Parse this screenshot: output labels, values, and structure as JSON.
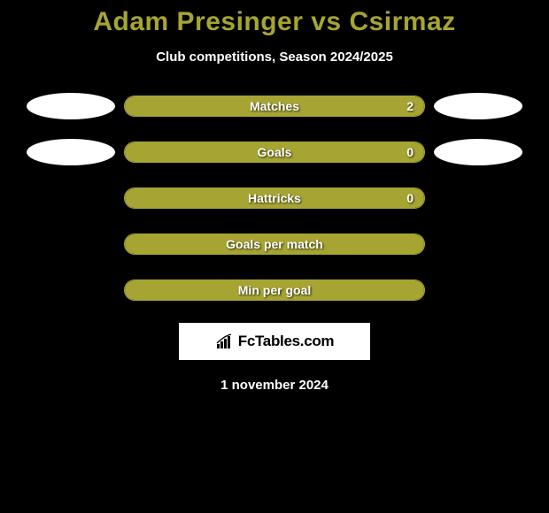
{
  "title": "Adam Presinger vs Csirmaz",
  "subtitle": "Club competitions, Season 2024/2025",
  "bar_color": "#a6a533",
  "bar_border_color": "#a6a533",
  "background_color": "#000000",
  "title_color": "#a6a533",
  "text_color": "#ffffff",
  "rows": [
    {
      "label": "Matches",
      "right_value": "2",
      "fill_pct": 100,
      "show_ellipses": true
    },
    {
      "label": "Goals",
      "right_value": "0",
      "fill_pct": 100,
      "show_ellipses": true
    },
    {
      "label": "Hattricks",
      "right_value": "0",
      "fill_pct": 100,
      "show_ellipses": false
    },
    {
      "label": "Goals per match",
      "right_value": "",
      "fill_pct": 100,
      "show_ellipses": false
    },
    {
      "label": "Min per goal",
      "right_value": "",
      "fill_pct": 100,
      "show_ellipses": false
    }
  ],
  "brand": "FcTables.com",
  "date": "1 november 2024"
}
